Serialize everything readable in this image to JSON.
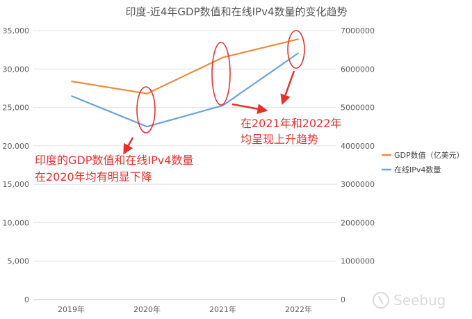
{
  "chart_data": {
    "type": "line",
    "title": "印度-近4年GDP数值和在线IPv4数量的变化趋势",
    "categories": [
      "2019年",
      "2020年",
      "2021年",
      "2022年"
    ],
    "left_axis": {
      "ylim": [
        0,
        35000
      ],
      "ticks": [
        "0",
        "5,000",
        "10,000",
        "15,000",
        "20,000",
        "25,000",
        "30,000",
        "35,000"
      ]
    },
    "right_axis": {
      "ylim": [
        0,
        7000000
      ],
      "ticks": [
        "0",
        "1000000",
        "2000000",
        "3000000",
        "4000000",
        "5000000",
        "6000000",
        "7000000"
      ]
    },
    "grid": true,
    "legend_position": "right",
    "series": [
      {
        "name": "GDP数值（亿美元）",
        "axis": "left",
        "color": "#f08a3c",
        "values": [
          28400,
          26800,
          31500,
          33900
        ]
      },
      {
        "name": "在线IPv4数量",
        "axis": "right",
        "color": "#6ba2d8",
        "values": [
          5300000,
          4500000,
          5050000,
          6420000
        ]
      }
    ],
    "annotations": {
      "left_line1": "印度的GDP数值和在线IPv4数量",
      "left_line2": "在2020年均有明显下降",
      "right_line1": "在2021年和2022年",
      "right_line2": "均呈现上升趋势",
      "color": "#e8302a"
    }
  },
  "watermark": {
    "text": "Seebug"
  }
}
